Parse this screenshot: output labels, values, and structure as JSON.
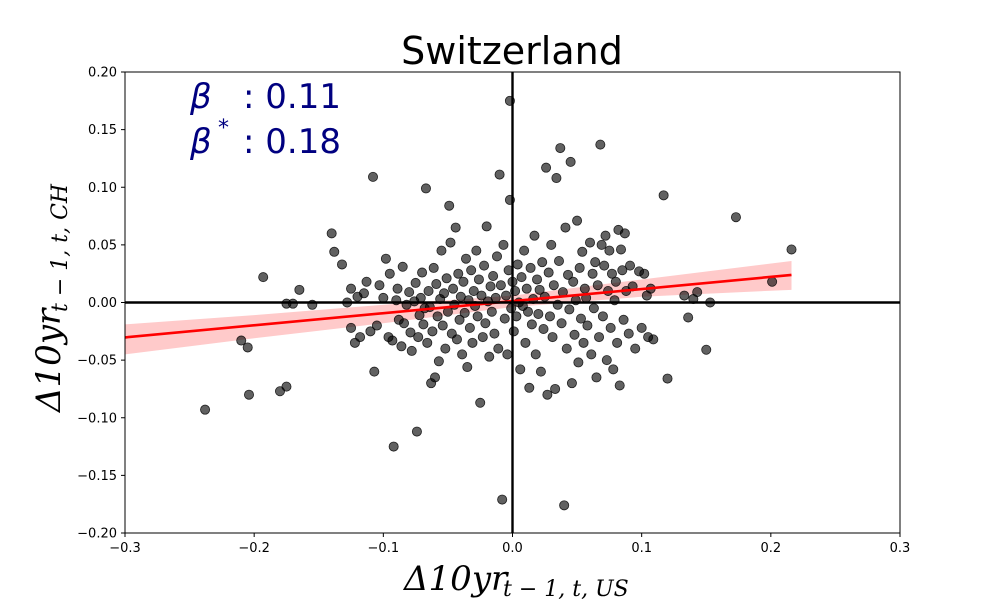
{
  "chart_data": {
    "type": "scatter",
    "title": "Switzerland",
    "xlabel_main": "Δ10yr",
    "xlabel_sub": "t − 1, t, US",
    "ylabel_main": "Δ10yr",
    "ylabel_sub": "t − 1, t, CH",
    "xlim": [
      -0.3,
      0.3
    ],
    "ylim": [
      -0.2,
      0.2
    ],
    "xticks": [
      -0.3,
      -0.2,
      -0.1,
      0.0,
      0.1,
      0.2,
      0.3
    ],
    "xtick_labels": [
      "−0.3",
      "−0.2",
      "−0.1",
      "0.0",
      "0.1",
      "0.2",
      "0.3"
    ],
    "yticks": [
      -0.2,
      -0.15,
      -0.1,
      -0.05,
      0.0,
      0.05,
      0.1,
      0.15,
      0.2
    ],
    "ytick_labels": [
      "−0.20",
      "−0.15",
      "−0.10",
      "−0.05",
      "0.00",
      "0.05",
      "0.10",
      "0.15",
      "0.20"
    ],
    "annotations": {
      "beta_symbol": "β",
      "beta_value": ": 0.11",
      "beta_star_symbol": "β",
      "beta_star_sup": "*",
      "beta_star_value": ": 0.18"
    },
    "regression": {
      "x_range": [
        -0.3,
        0.216
      ],
      "intercept": 0.0012,
      "slope": 0.105,
      "ci_band": {
        "x": [
          -0.3,
          -0.2,
          -0.1,
          0.0,
          0.1,
          0.216
        ],
        "lower": [
          -0.045,
          -0.031,
          -0.018,
          -0.004,
          0.005,
          0.011
        ],
        "upper": [
          -0.019,
          -0.011,
          -0.002,
          0.006,
          0.02,
          0.036
        ]
      }
    },
    "colors": {
      "points": "#000000",
      "regression_line": "#ff0000",
      "ci_band": "#ffb3b3",
      "annotation": "#000080"
    },
    "points": [
      [
        -0.238,
        -0.093
      ],
      [
        -0.21,
        -0.033
      ],
      [
        -0.205,
        -0.039
      ],
      [
        -0.204,
        -0.08
      ],
      [
        -0.193,
        0.022
      ],
      [
        -0.18,
        -0.077
      ],
      [
        -0.175,
        -0.073
      ],
      [
        -0.175,
        -0.001
      ],
      [
        -0.17,
        -0.001
      ],
      [
        -0.165,
        0.011
      ],
      [
        -0.155,
        -0.002
      ],
      [
        -0.14,
        0.06
      ],
      [
        -0.138,
        0.044
      ],
      [
        -0.132,
        0.033
      ],
      [
        -0.128,
        0.0
      ],
      [
        -0.125,
        0.012
      ],
      [
        -0.125,
        -0.022
      ],
      [
        -0.122,
        -0.035
      ],
      [
        -0.12,
        0.005
      ],
      [
        -0.118,
        -0.03
      ],
      [
        -0.115,
        0.008
      ],
      [
        -0.113,
        0.018
      ],
      [
        -0.11,
        -0.025
      ],
      [
        -0.108,
        0.109
      ],
      [
        -0.107,
        -0.06
      ],
      [
        -0.105,
        -0.02
      ],
      [
        -0.103,
        0.015
      ],
      [
        -0.1,
        0.004
      ],
      [
        -0.098,
        0.038
      ],
      [
        -0.096,
        -0.03
      ],
      [
        -0.095,
        0.025
      ],
      [
        -0.093,
        -0.033
      ],
      [
        -0.092,
        -0.125
      ],
      [
        -0.09,
        0.002
      ],
      [
        -0.089,
        0.012
      ],
      [
        -0.088,
        -0.015
      ],
      [
        -0.086,
        -0.038
      ],
      [
        -0.085,
        0.031
      ],
      [
        -0.084,
        -0.018
      ],
      [
        -0.082,
        -0.002
      ],
      [
        -0.08,
        0.009
      ],
      [
        -0.079,
        -0.026
      ],
      [
        -0.078,
        -0.042
      ],
      [
        -0.076,
        0.001
      ],
      [
        -0.075,
        0.017
      ],
      [
        -0.074,
        -0.112
      ],
      [
        -0.073,
        -0.03
      ],
      [
        -0.072,
        -0.011
      ],
      [
        -0.071,
        0.004
      ],
      [
        -0.07,
        0.026
      ],
      [
        -0.069,
        -0.019
      ],
      [
        -0.068,
        -0.005
      ],
      [
        -0.067,
        0.099
      ],
      [
        -0.066,
        -0.035
      ],
      [
        -0.065,
        0.01
      ],
      [
        -0.064,
        -0.004
      ],
      [
        -0.063,
        -0.07
      ],
      [
        -0.062,
        -0.025
      ],
      [
        -0.061,
        0.03
      ],
      [
        -0.06,
        -0.065
      ],
      [
        -0.059,
        0.016
      ],
      [
        -0.058,
        -0.012
      ],
      [
        -0.057,
        -0.051
      ],
      [
        -0.056,
        0.003
      ],
      [
        -0.055,
        0.045
      ],
      [
        -0.054,
        -0.02
      ],
      [
        -0.053,
        0.008
      ],
      [
        -0.052,
        -0.04
      ],
      [
        -0.051,
        0.021
      ],
      [
        -0.05,
        -0.008
      ],
      [
        -0.049,
        0.084
      ],
      [
        -0.048,
        0.052
      ],
      [
        -0.047,
        -0.027
      ],
      [
        -0.046,
        0.012
      ],
      [
        -0.045,
        -0.002
      ],
      [
        -0.044,
        0.065
      ],
      [
        -0.043,
        -0.032
      ],
      [
        -0.042,
        0.025
      ],
      [
        -0.041,
        -0.015
      ],
      [
        -0.04,
        0.005
      ],
      [
        -0.039,
        -0.045
      ],
      [
        -0.038,
        0.018
      ],
      [
        -0.037,
        -0.009
      ],
      [
        -0.036,
        0.038
      ],
      [
        -0.035,
        -0.056
      ],
      [
        -0.034,
        0.002
      ],
      [
        -0.033,
        -0.022
      ],
      [
        -0.032,
        0.028
      ],
      [
        -0.031,
        -0.035
      ],
      [
        -0.03,
        0.01
      ],
      [
        -0.029,
        -0.003
      ],
      [
        -0.028,
        0.045
      ],
      [
        -0.027,
        -0.012
      ],
      [
        -0.026,
        0.02
      ],
      [
        -0.025,
        -0.087
      ],
      [
        -0.024,
        0.006
      ],
      [
        -0.023,
        -0.03
      ],
      [
        -0.022,
        0.032
      ],
      [
        -0.021,
        -0.018
      ],
      [
        -0.02,
        0.066
      ],
      [
        -0.019,
        0.001
      ],
      [
        -0.018,
        -0.047
      ],
      [
        -0.017,
        0.014
      ],
      [
        -0.016,
        -0.008
      ],
      [
        -0.015,
        0.023
      ],
      [
        -0.014,
        -0.027
      ],
      [
        -0.013,
        0.004
      ],
      [
        -0.012,
        0.04
      ],
      [
        -0.011,
        -0.04
      ],
      [
        -0.01,
        0.111
      ],
      [
        -0.009,
        0.015
      ],
      [
        -0.008,
        -0.171
      ],
      [
        -0.007,
        0.05
      ],
      [
        -0.006,
        -0.014
      ],
      [
        -0.005,
        0.006
      ],
      [
        -0.004,
        -0.045
      ],
      [
        -0.003,
        0.028
      ],
      [
        -0.002,
        0.175
      ],
      [
        -0.002,
        0.089
      ],
      [
        -0.001,
        -0.005
      ],
      [
        0.0,
        0.018
      ],
      [
        0.001,
        -0.025
      ],
      [
        0.002,
        0.01
      ],
      [
        0.003,
        -0.012
      ],
      [
        0.004,
        0.033
      ],
      [
        0.005,
        0.0
      ],
      [
        0.006,
        -0.058
      ],
      [
        0.007,
        0.022
      ],
      [
        0.008,
        -0.003
      ],
      [
        0.009,
        0.045
      ],
      [
        0.01,
        -0.035
      ],
      [
        0.011,
        0.012
      ],
      [
        0.012,
        -0.008
      ],
      [
        0.013,
        -0.074
      ],
      [
        0.014,
        0.03
      ],
      [
        0.015,
        -0.019
      ],
      [
        0.016,
        0.003
      ],
      [
        0.017,
        0.058
      ],
      [
        0.018,
        -0.045
      ],
      [
        0.019,
        0.02
      ],
      [
        0.02,
        -0.01
      ],
      [
        0.021,
        0.011
      ],
      [
        0.022,
        -0.06
      ],
      [
        0.023,
        0.035
      ],
      [
        0.024,
        -0.023
      ],
      [
        0.025,
        0.005
      ],
      [
        0.026,
        0.117
      ],
      [
        0.027,
        -0.08
      ],
      [
        0.028,
        0.026
      ],
      [
        0.029,
        -0.012
      ],
      [
        0.03,
        0.05
      ],
      [
        0.031,
        -0.03
      ],
      [
        0.032,
        0.015
      ],
      [
        0.033,
        -0.075
      ],
      [
        0.034,
        0.108
      ],
      [
        0.035,
        -0.002
      ],
      [
        0.036,
        0.036
      ],
      [
        0.037,
        0.134
      ],
      [
        0.038,
        -0.018
      ],
      [
        0.039,
        0.009
      ],
      [
        0.04,
        -0.176
      ],
      [
        0.041,
        0.065
      ],
      [
        0.042,
        -0.04
      ],
      [
        0.043,
        0.024
      ],
      [
        0.044,
        -0.006
      ],
      [
        0.045,
        0.122
      ],
      [
        0.046,
        -0.07
      ],
      [
        0.047,
        0.018
      ],
      [
        0.048,
        -0.028
      ],
      [
        0.049,
        0.002
      ],
      [
        0.05,
        0.071
      ],
      [
        0.051,
        -0.052
      ],
      [
        0.052,
        0.03
      ],
      [
        0.053,
        -0.014
      ],
      [
        0.054,
        0.044
      ],
      [
        0.055,
        -0.035
      ],
      [
        0.056,
        0.012
      ],
      [
        0.057,
        0.004
      ],
      [
        0.058,
        -0.02
      ],
      [
        0.06,
        0.052
      ],
      [
        0.061,
        -0.045
      ],
      [
        0.062,
        0.025
      ],
      [
        0.063,
        -0.005
      ],
      [
        0.064,
        0.035
      ],
      [
        0.065,
        -0.065
      ],
      [
        0.066,
        0.015
      ],
      [
        0.067,
        -0.03
      ],
      [
        0.068,
        0.137
      ],
      [
        0.069,
        0.05
      ],
      [
        0.07,
        -0.012
      ],
      [
        0.071,
        0.032
      ],
      [
        0.072,
        0.058
      ],
      [
        0.073,
        -0.05
      ],
      [
        0.074,
        0.01
      ],
      [
        0.075,
        0.045
      ],
      [
        0.076,
        -0.022
      ],
      [
        0.077,
        0.025
      ],
      [
        0.078,
        -0.058
      ],
      [
        0.079,
        0.002
      ],
      [
        0.08,
        0.018
      ],
      [
        0.081,
        -0.035
      ],
      [
        0.082,
        0.063
      ],
      [
        0.083,
        -0.072
      ],
      [
        0.084,
        0.046
      ],
      [
        0.085,
        0.028
      ],
      [
        0.086,
        -0.015
      ],
      [
        0.087,
        0.06
      ],
      [
        0.088,
        0.01
      ],
      [
        0.09,
        -0.027
      ],
      [
        0.091,
        0.032
      ],
      [
        0.093,
        0.014
      ],
      [
        0.095,
        -0.04
      ],
      [
        0.098,
        0.027
      ],
      [
        0.1,
        -0.022
      ],
      [
        0.102,
        0.025
      ],
      [
        0.104,
        0.006
      ],
      [
        0.105,
        -0.03
      ],
      [
        0.107,
        0.012
      ],
      [
        0.109,
        -0.032
      ],
      [
        0.117,
        0.093
      ],
      [
        0.12,
        -0.066
      ],
      [
        0.133,
        0.006
      ],
      [
        0.136,
        -0.013
      ],
      [
        0.14,
        0.003
      ],
      [
        0.143,
        0.009
      ],
      [
        0.15,
        -0.041
      ],
      [
        0.153,
        0.0
      ],
      [
        0.173,
        0.074
      ],
      [
        0.201,
        0.018
      ],
      [
        0.216,
        0.046
      ]
    ]
  }
}
